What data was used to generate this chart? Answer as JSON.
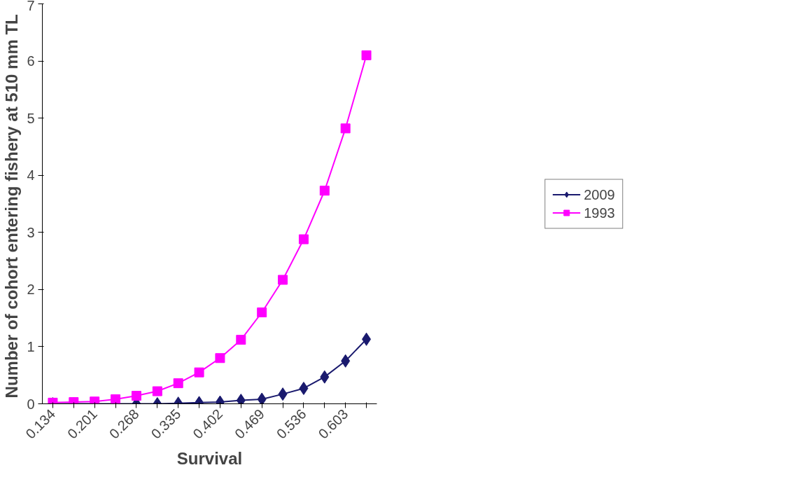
{
  "chart_data": {
    "type": "line",
    "xlabel": "Survival",
    "ylabel": "Number of cohort  entering fishery at 510 mm TL",
    "categories": [
      "0.134",
      null,
      "0.201",
      null,
      "0.268",
      null,
      "0.335",
      null,
      "0.402",
      null,
      "0.469",
      null,
      "0.536",
      null,
      "0.603",
      null
    ],
    "series": [
      {
        "name": "2009",
        "color": "#1a1a6e",
        "marker": "diamond",
        "values": [
          0,
          0,
          0,
          0,
          0,
          0,
          0.01,
          0.02,
          0.03,
          0.06,
          0.08,
          0.17,
          0.27,
          0.47,
          0.75,
          1.13
        ]
      },
      {
        "name": "1993",
        "color": "#ff00ff",
        "marker": "square",
        "values": [
          0.02,
          0.03,
          0.04,
          0.08,
          0.14,
          0.22,
          0.36,
          0.55,
          0.8,
          1.12,
          1.6,
          2.17,
          2.88,
          3.73,
          4.82,
          6.1
        ]
      }
    ],
    "ylim": [
      0,
      7
    ],
    "yticks": [
      0,
      1,
      2,
      3,
      4,
      5,
      6,
      7
    ],
    "grid": false,
    "legend": "right"
  }
}
